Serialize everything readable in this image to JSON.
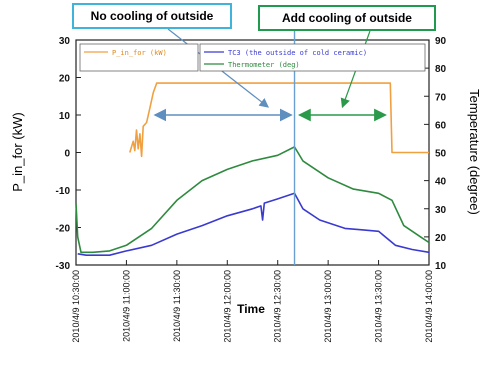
{
  "callouts": {
    "left": "No cooling of outside",
    "right": "Add cooling of outside"
  },
  "chart_data": {
    "type": "line",
    "xlabel": "Time",
    "ylabel": "P_in_for (kW)",
    "y2label": "Temperature (degree)",
    "ylim": [
      -30,
      30
    ],
    "y2lim": [
      10,
      90
    ],
    "yticks": [
      -30,
      -20,
      -10,
      0,
      10,
      20,
      30
    ],
    "y2ticks": [
      10,
      20,
      30,
      40,
      50,
      60,
      70,
      80,
      90
    ],
    "xlim": [
      "10:30",
      "14:00"
    ],
    "xtick_labels": [
      "2010/4/9 10:30:00",
      "2010/4/9 11:00:00",
      "2010/4/9 11:30:00",
      "2010/4/9 12:00:00",
      "2010/4/9 12:30:00",
      "2010/4/9 13:00:00",
      "2010/4/9 13:30:00",
      "2010/4/9 14:00:00"
    ],
    "grid": false,
    "legend_position": "top",
    "marker_time": "12:40",
    "series": [
      {
        "name": "P_in_for (kW)",
        "axis": "left",
        "color": "#f0a040",
        "points": [
          [
            "11:02",
            0
          ],
          [
            "11:04",
            3
          ],
          [
            "11:05",
            0.5
          ],
          [
            "11:06",
            6
          ],
          [
            "11:07",
            1
          ],
          [
            "11:08",
            5
          ],
          [
            "11:09",
            -1
          ],
          [
            "11:10",
            7
          ],
          [
            "11:12",
            8
          ],
          [
            "11:14",
            12
          ],
          [
            "11:16",
            16
          ],
          [
            "11:18",
            18.5
          ],
          [
            "11:20",
            18.5
          ],
          [
            "12:00",
            18.5
          ],
          [
            "12:40",
            18.5
          ],
          [
            "13:00",
            18.5
          ],
          [
            "13:20",
            18.5
          ],
          [
            "13:37",
            18.5
          ],
          [
            "13:38",
            0
          ],
          [
            "14:00",
            0
          ]
        ]
      },
      {
        "name": "TC3 (the outside of cold ceramic)",
        "axis": "right",
        "color": "#3a3ad0",
        "points": [
          [
            "10:31",
            14
          ],
          [
            "10:36",
            13.5
          ],
          [
            "10:50",
            13.5
          ],
          [
            "11:00",
            15
          ],
          [
            "11:15",
            17
          ],
          [
            "11:30",
            21
          ],
          [
            "11:45",
            24
          ],
          [
            "12:00",
            27.5
          ],
          [
            "12:15",
            30
          ],
          [
            "12:20",
            31
          ],
          [
            "12:21",
            26
          ],
          [
            "12:22",
            32
          ],
          [
            "12:30",
            33.5
          ],
          [
            "12:40",
            35.5
          ],
          [
            "12:45",
            30
          ],
          [
            "12:55",
            26
          ],
          [
            "13:10",
            23
          ],
          [
            "13:20",
            22.5
          ],
          [
            "13:30",
            22
          ],
          [
            "13:40",
            17
          ],
          [
            "13:50",
            15.5
          ],
          [
            "14:00",
            14.5
          ]
        ]
      },
      {
        "name": "Thermometer (deg)",
        "axis": "right",
        "color": "#2f8a3f",
        "points": [
          [
            "10:30",
            32
          ],
          [
            "10:31",
            20
          ],
          [
            "10:33",
            14.5
          ],
          [
            "10:40",
            14.5
          ],
          [
            "10:50",
            15
          ],
          [
            "11:00",
            17
          ],
          [
            "11:15",
            23
          ],
          [
            "11:30",
            33
          ],
          [
            "11:45",
            40
          ],
          [
            "12:00",
            44
          ],
          [
            "12:15",
            47
          ],
          [
            "12:30",
            49
          ],
          [
            "12:40",
            52
          ],
          [
            "12:45",
            47
          ],
          [
            "13:00",
            41
          ],
          [
            "13:15",
            37
          ],
          [
            "13:30",
            35.5
          ],
          [
            "13:38",
            33
          ],
          [
            "13:45",
            24
          ],
          [
            "13:55",
            20
          ],
          [
            "14:00",
            18
          ]
        ]
      }
    ],
    "annotations": [
      {
        "type": "double-arrow",
        "color": "#5f8fbf",
        "from": "11:17",
        "to": "12:38",
        "y": 10
      },
      {
        "type": "double-arrow",
        "color": "#2a9a4a",
        "from": "12:43",
        "to": "13:34",
        "y": 10
      }
    ]
  }
}
